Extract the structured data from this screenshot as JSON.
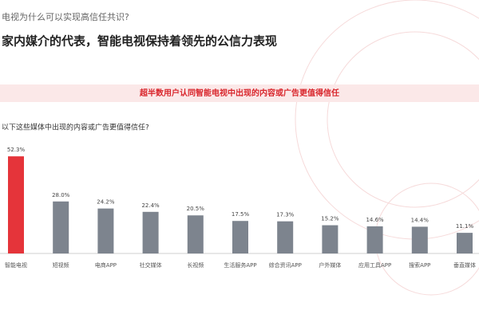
{
  "kicker": "电视为什么可以实现高信任共识?",
  "headline": "家内媒介的代表，智能电视保持着领先的公信力表现",
  "banner": "超半数用户认同智能电视中出现的内容或广告更值得信任",
  "chart_data": {
    "type": "bar",
    "title": "以下这些媒体中出现的内容或广告更值得信任?",
    "categories": [
      "智能电视",
      "短视频",
      "电商APP",
      "社交媒体",
      "长视频",
      "生活服务APP",
      "综合资讯APP",
      "户外媒体",
      "应用工具APP",
      "搜索APP",
      "垂直媒体"
    ],
    "values": [
      52.3,
      28.0,
      24.2,
      22.4,
      20.5,
      17.5,
      17.3,
      15.2,
      14.6,
      14.4,
      11.1
    ],
    "value_labels": [
      "52.3%",
      "28.0%",
      "24.2%",
      "22.4%",
      "20.5%",
      "17.5%",
      "17.3%",
      "15.2%",
      "14.6%",
      "14.4%",
      "11.1%"
    ],
    "colors": [
      "#e5343a",
      "#7d848e",
      "#7d848e",
      "#7d848e",
      "#7d848e",
      "#7d848e",
      "#7d848e",
      "#7d848e",
      "#7d848e",
      "#7d848e",
      "#7d848e"
    ]
  }
}
